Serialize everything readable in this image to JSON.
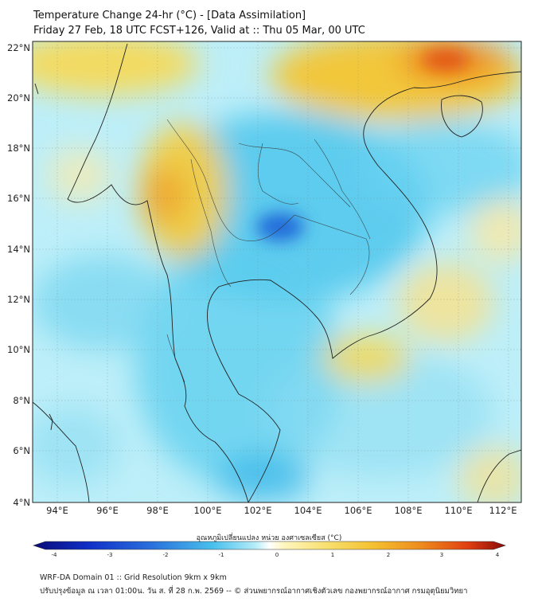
{
  "title": {
    "line1": "Temperature Change 24-hr (°C) - [Data Assimilation]",
    "line2": "Friday 27 Feb, 18 UTC FCST+126, Valid at :: Thu 05 Mar, 00 UTC"
  },
  "axes": {
    "lat_labels": [
      "22°N",
      "20°N",
      "18°N",
      "16°N",
      "14°N",
      "12°N",
      "10°N",
      "8°N",
      "6°N",
      "4°N"
    ],
    "lon_labels": [
      "94°E",
      "96°E",
      "98°E",
      "100°E",
      "102°E",
      "104°E",
      "106°E",
      "108°E",
      "110°E",
      "112°E"
    ]
  },
  "colorbar": {
    "label": "อุณหภูมิเปลี่ยนแปลง หน่วย องศาเซลเซียส (°C)",
    "ticks": [
      "-4",
      "-3",
      "-2",
      "-1",
      "0",
      "1",
      "2",
      "3",
      "4"
    ],
    "range": [
      -4,
      4
    ]
  },
  "footer": {
    "line1": "WRF-DA Domain 01 :: Grid Resolution 9km x 9km",
    "line2": "ปรับปรุงข้อมูล ณ เวลา 01:00น. วัน ส. ที่ 28 ก.พ. 2569 -- © ส่วนพยากรณ์อากาศเชิงตัวเลข กองพยากรณ์อากาศ กรมอุตุนิยมวิทยา"
  },
  "colors": {
    "cool": "#48c8ec",
    "warm": "#f5cc30",
    "hot": "#e84a14",
    "cold_core": "#2a70dc",
    "coast": "#222222"
  }
}
